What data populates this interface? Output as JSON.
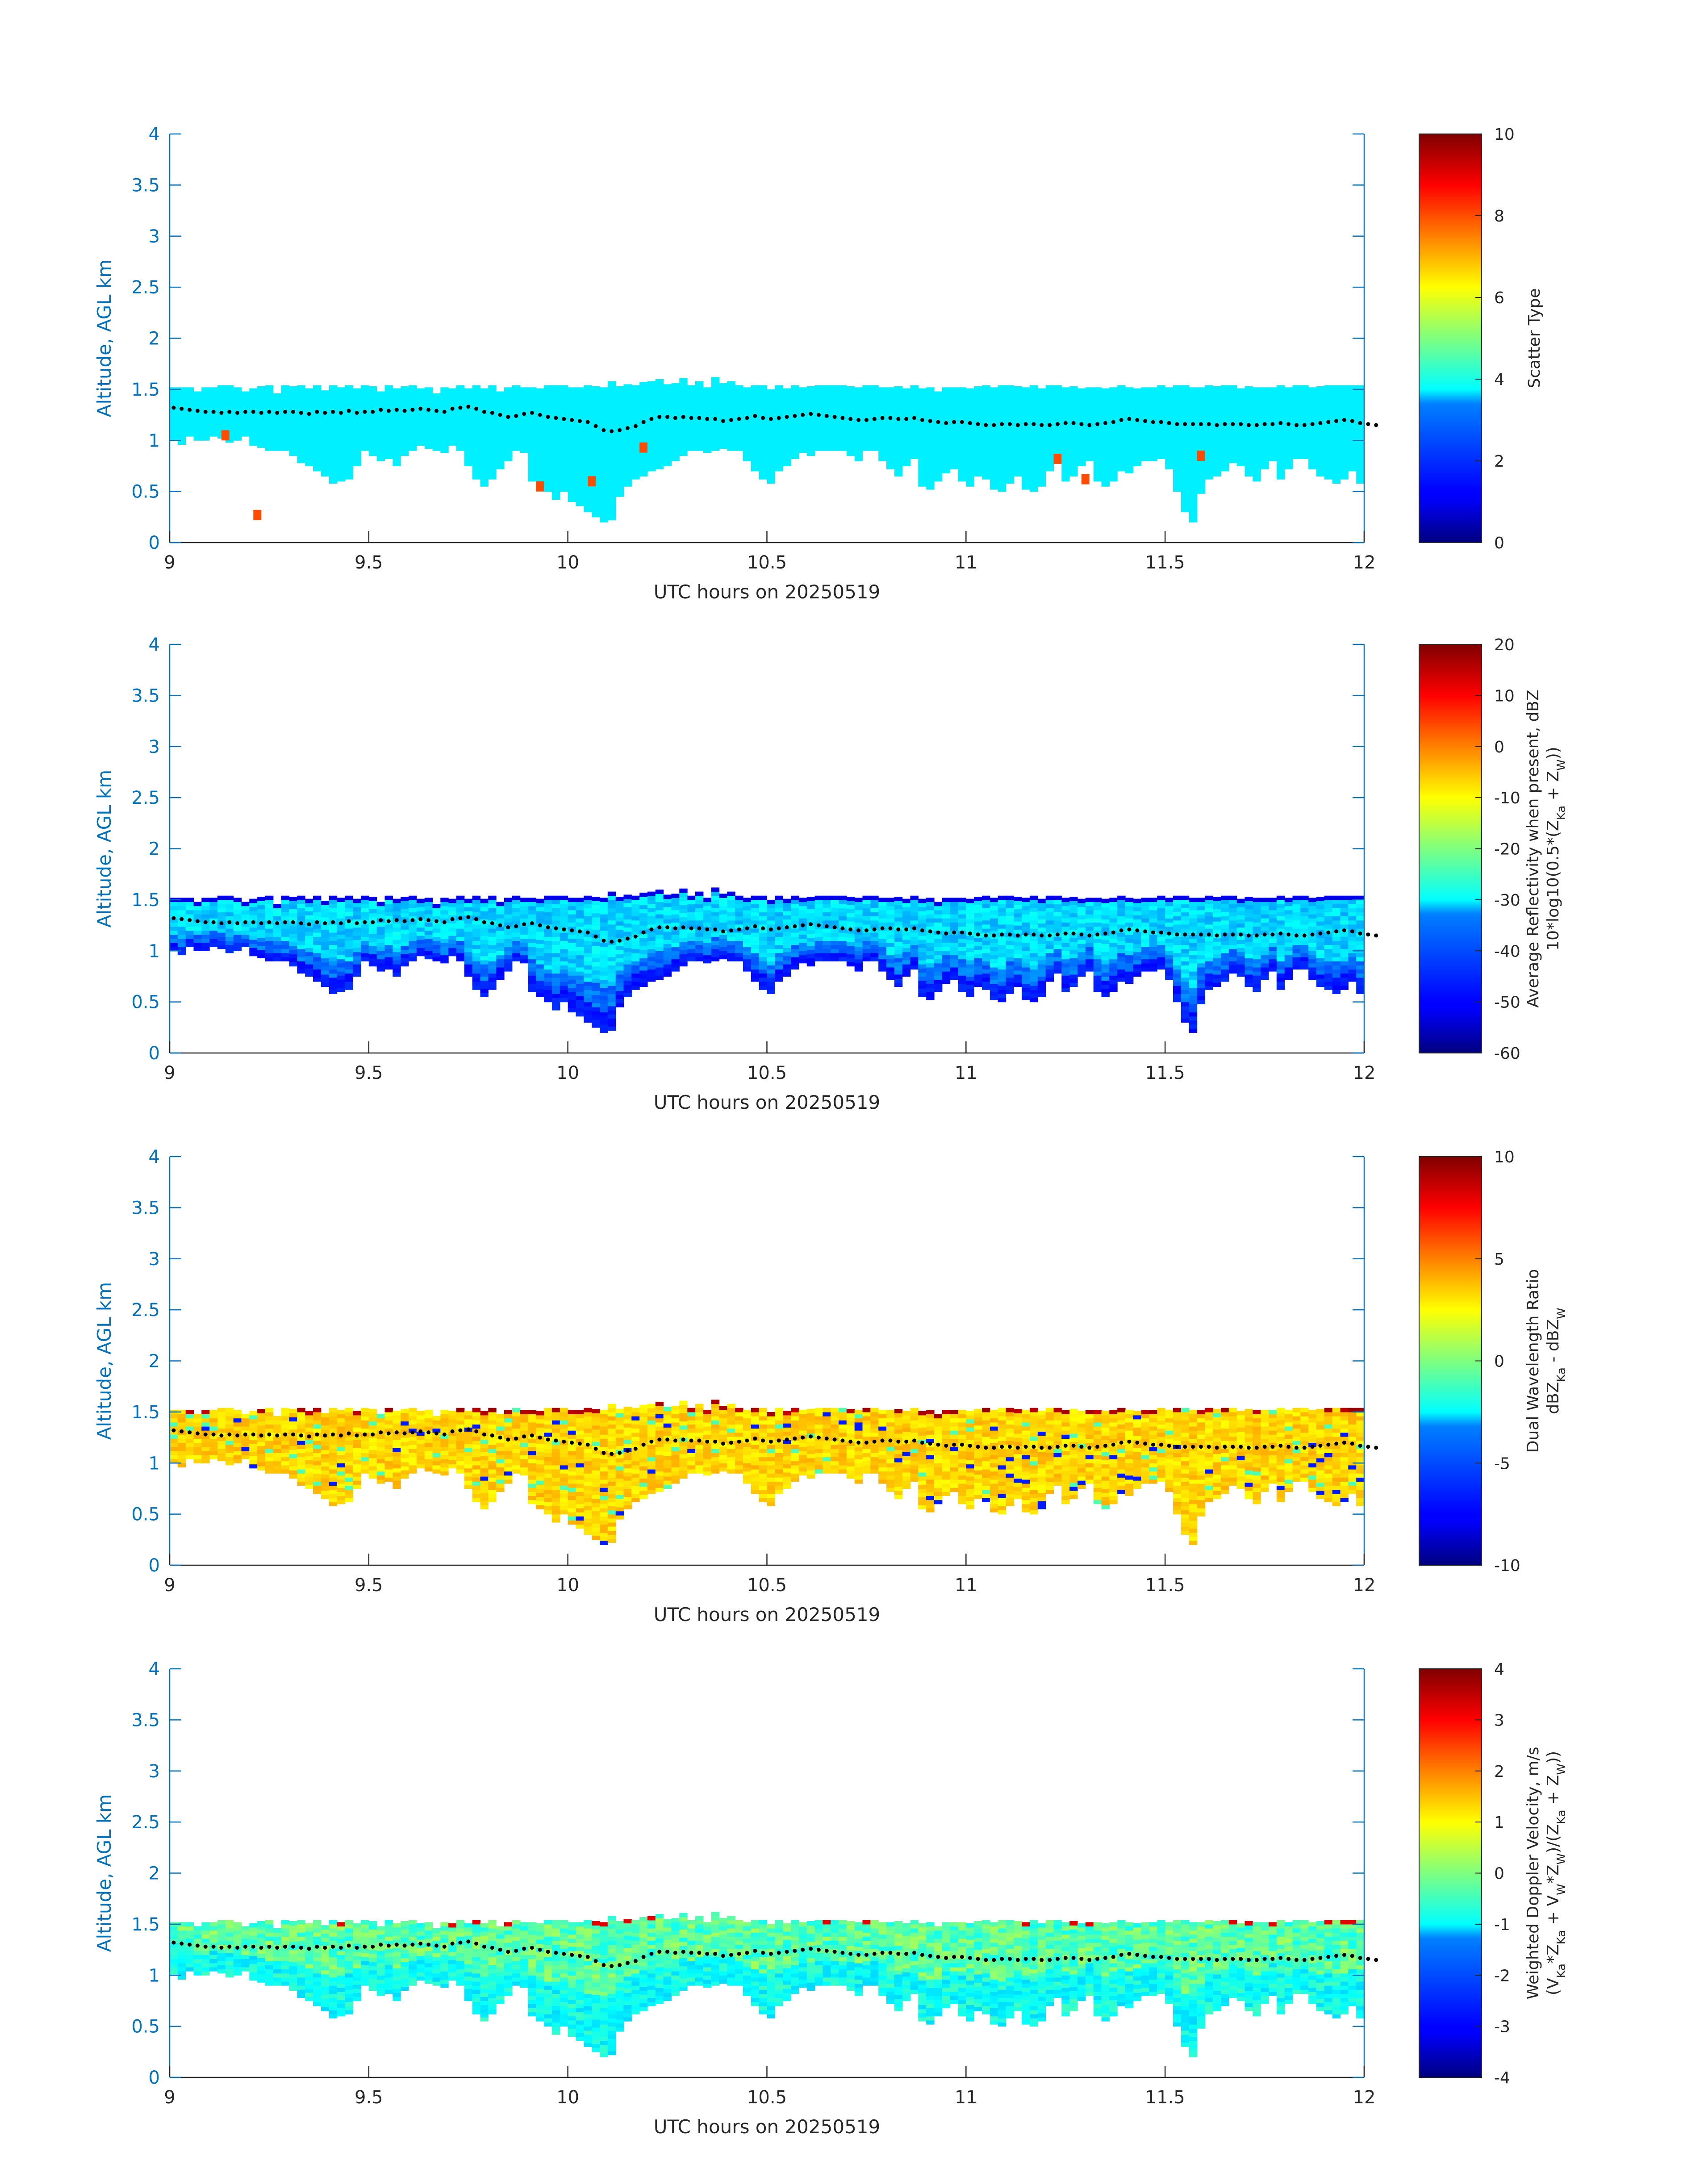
{
  "chart_data": [
    {
      "type": "heatmap",
      "variable": "scatter_type",
      "xlabel": "UTC hours on 20250519",
      "ylabel": "Altitude, AGL km",
      "xlim": [
        9,
        12
      ],
      "ylim": [
        0,
        4
      ],
      "xticks": [
        "9",
        "9.5",
        "10",
        "10.5",
        "11",
        "11.5",
        "12"
      ],
      "yticks": [
        "0",
        "0.5",
        "1",
        "1.5",
        "2",
        "2.5",
        "3",
        "3.5",
        "4"
      ],
      "colorbar": {
        "label_lines": [
          "Scatter Type"
        ],
        "range": [
          0,
          10
        ],
        "ticks": [
          "0",
          "2",
          "4",
          "6",
          "8",
          "10"
        ]
      },
      "colormap": "jet",
      "typical_value": 3.6,
      "dominant_value": 3.6,
      "isolated_values": [
        {
          "x": 9.22,
          "y": 0.27,
          "value": 8.0
        },
        {
          "x": 9.14,
          "y": 1.05,
          "value": 8.0
        },
        {
          "x": 9.93,
          "y": 0.55,
          "value": 8.0
        },
        {
          "x": 10.06,
          "y": 0.6,
          "value": 8.0
        },
        {
          "x": 10.19,
          "y": 0.93,
          "value": 8.0
        },
        {
          "x": 11.23,
          "y": 0.82,
          "value": 8.0
        },
        {
          "x": 11.3,
          "y": 0.62,
          "value": 8.0
        },
        {
          "x": 11.59,
          "y": 0.85,
          "value": 8.0
        }
      ]
    },
    {
      "type": "heatmap",
      "variable": "reflectivity",
      "xlabel": "UTC hours on 20250519",
      "ylabel": "Altitude, AGL km",
      "xlim": [
        9,
        12
      ],
      "ylim": [
        0,
        4
      ],
      "xticks": [
        "9",
        "9.5",
        "10",
        "10.5",
        "11",
        "11.5",
        "12"
      ],
      "yticks": [
        "0",
        "0.5",
        "1",
        "1.5",
        "2",
        "2.5",
        "3",
        "3.5",
        "4"
      ],
      "colorbar": {
        "label_lines": [
          "Average Reflectivity when present, dBZ",
          "10*log10(0.5*(Z_Ka + Z_W))"
        ],
        "range": [
          -60,
          20
        ],
        "ticks": [
          "-60",
          "-50",
          "-40",
          "-30",
          "-20",
          "-10",
          "0",
          "10",
          "20"
        ]
      },
      "colormap": "jet",
      "top_value": -52,
      "core_value": -33,
      "bottom_value": -50
    },
    {
      "type": "heatmap",
      "variable": "dual_wavelength_ratio",
      "xlabel": "UTC hours on 20250519",
      "ylabel": "Altitude, AGL km",
      "xlim": [
        9,
        12
      ],
      "ylim": [
        0,
        4
      ],
      "xticks": [
        "9",
        "9.5",
        "10",
        "10.5",
        "11",
        "11.5",
        "12"
      ],
      "yticks": [
        "0",
        "0.5",
        "1",
        "1.5",
        "2",
        "2.5",
        "3",
        "3.5",
        "4"
      ],
      "colorbar": {
        "label_lines": [
          "Dual Wavelength Ratio",
          "dBZ_Ka - dBZ_W"
        ],
        "range": [
          -10,
          10
        ],
        "ticks": [
          "-10",
          "-5",
          "0",
          "5",
          "10"
        ]
      },
      "colormap": "jet",
      "typical_value": 3.2,
      "top_value": 7.5
    },
    {
      "type": "heatmap",
      "variable": "weighted_doppler_velocity",
      "xlabel": "UTC hours on 20250519",
      "ylabel": "Altitude, AGL km",
      "xlim": [
        9,
        12
      ],
      "ylim": [
        0,
        4
      ],
      "xticks": [
        "9",
        "9.5",
        "10",
        "10.5",
        "11",
        "11.5",
        "12"
      ],
      "yticks": [
        "0",
        "0.5",
        "1",
        "1.5",
        "2",
        "2.5",
        "3",
        "3.5",
        "4"
      ],
      "colorbar": {
        "label_lines": [
          "Weighted Doppler Velocity, m/s",
          "(V_Ka*Z_Ka + V_W*Z_W)/(Z_Ka + Z_W))"
        ],
        "range": [
          -4,
          4
        ],
        "ticks": [
          "-4",
          "-3",
          "-2",
          "-1",
          "0",
          "1",
          "2",
          "3",
          "4"
        ]
      },
      "colormap": "jet",
      "core_value": -0.3,
      "fallstreak_value": -1.6
    }
  ],
  "cloud": {
    "time_start": 9.0,
    "time_end": 12.0,
    "time_step": 0.02,
    "top_km": [
      1.52,
      1.52,
      1.52,
      1.48,
      1.52,
      1.52,
      1.52,
      1.52,
      1.52,
      1.48,
      1.52,
      1.52,
      1.52,
      1.48,
      1.52,
      1.52,
      1.52,
      1.52,
      1.52,
      1.48,
      1.52,
      1.52,
      1.52,
      1.52,
      1.52,
      1.52,
      1.48,
      1.52,
      1.52,
      1.52,
      1.52,
      1.52,
      1.52,
      1.48,
      1.52,
      1.52,
      1.52,
      1.52,
      1.52,
      1.52,
      1.52,
      1.48,
      1.52,
      1.52,
      1.52,
      1.52,
      1.52,
      1.52,
      1.52,
      1.52,
      1.52,
      1.52,
      1.52,
      1.52,
      1.52,
      1.56,
      1.52,
      1.56,
      1.52,
      1.56,
      1.56,
      1.6,
      1.56,
      1.56,
      1.6,
      1.52,
      1.56,
      1.52,
      1.6,
      1.56,
      1.56,
      1.52,
      1.52,
      1.52,
      1.52,
      1.48,
      1.52,
      1.52,
      1.52,
      1.52,
      1.52,
      1.52,
      1.52,
      1.52,
      1.52,
      1.52,
      1.52,
      1.52,
      1.52,
      1.52,
      1.52,
      1.52,
      1.52,
      1.52,
      1.52,
      1.52,
      1.48,
      1.52,
      1.52,
      1.52,
      1.52,
      1.52,
      1.52,
      1.52,
      1.52,
      1.52,
      1.52,
      1.52,
      1.52,
      1.52,
      1.52,
      1.52,
      1.52,
      1.52,
      1.52,
      1.52,
      1.52,
      1.52,
      1.52,
      1.52,
      1.52,
      1.52,
      1.52,
      1.52,
      1.52,
      1.52,
      1.52,
      1.52,
      1.52,
      1.52,
      1.52,
      1.52,
      1.52,
      1.52,
      1.52,
      1.52,
      1.52,
      1.52,
      1.52,
      1.52,
      1.52,
      1.52,
      1.52,
      1.52,
      1.52,
      1.52,
      1.52,
      1.52,
      1.52,
      1.52,
      1.52,
      1.52,
      1.52,
      1.48,
      1.52,
      1.52,
      1.52
    ],
    "base_km": [
      1.0,
      0.96,
      1.04,
      1.0,
      1.0,
      1.04,
      1.02,
      0.98,
      1.0,
      1.04,
      0.95,
      0.93,
      0.9,
      0.9,
      0.9,
      0.85,
      0.78,
      0.75,
      0.7,
      0.65,
      0.58,
      0.6,
      0.62,
      0.75,
      0.9,
      0.85,
      0.8,
      0.82,
      0.75,
      0.85,
      0.9,
      0.95,
      0.92,
      0.9,
      0.88,
      0.95,
      0.9,
      0.75,
      0.62,
      0.55,
      0.62,
      0.72,
      0.8,
      0.9,
      0.88,
      0.6,
      0.55,
      0.5,
      0.42,
      0.5,
      0.4,
      0.36,
      0.3,
      0.25,
      0.2,
      0.22,
      0.45,
      0.55,
      0.62,
      0.65,
      0.7,
      0.72,
      0.75,
      0.8,
      0.85,
      0.9,
      0.9,
      0.88,
      0.9,
      0.92,
      0.9,
      0.9,
      0.8,
      0.7,
      0.62,
      0.58,
      0.7,
      0.75,
      0.82,
      0.88,
      0.85,
      0.9,
      0.9,
      0.9,
      0.9,
      0.85,
      0.8,
      0.9,
      0.9,
      0.8,
      0.72,
      0.65,
      0.75,
      0.82,
      0.55,
      0.52,
      0.6,
      0.68,
      0.72,
      0.6,
      0.55,
      0.65,
      0.62,
      0.52,
      0.5,
      0.58,
      0.65,
      0.52,
      0.5,
      0.55,
      0.7,
      0.78,
      0.6,
      0.65,
      0.75,
      0.8,
      0.6,
      0.55,
      0.6,
      0.7,
      0.68,
      0.75,
      0.8,
      0.8,
      0.82,
      0.72,
      0.5,
      0.3,
      0.2,
      0.48,
      0.62,
      0.65,
      0.7,
      0.78,
      0.75,
      0.65,
      0.6,
      0.72,
      0.8,
      0.62,
      0.72,
      0.82,
      0.82,
      0.72,
      0.65,
      0.62,
      0.58,
      0.62,
      0.7,
      0.58,
      0.62,
      0.75,
      0.85,
      0.88
    ],
    "melting_dots_km": [
      1.32,
      1.31,
      1.3,
      1.29,
      1.28,
      1.28,
      1.27,
      1.28,
      1.27,
      1.28,
      1.28,
      1.27,
      1.28,
      1.27,
      1.28,
      1.28,
      1.27,
      1.26,
      1.28,
      1.27,
      1.28,
      1.27,
      1.29,
      1.27,
      1.28,
      1.28,
      1.3,
      1.29,
      1.3,
      1.29,
      1.3,
      1.31,
      1.3,
      1.29,
      1.28,
      1.31,
      1.32,
      1.33,
      1.31,
      1.28,
      1.27,
      1.25,
      1.23,
      1.24,
      1.26,
      1.27,
      1.25,
      1.23,
      1.22,
      1.21,
      1.2,
      1.19,
      1.18,
      1.14,
      1.1,
      1.09,
      1.1,
      1.12,
      1.14,
      1.18,
      1.21,
      1.23,
      1.23,
      1.22,
      1.23,
      1.22,
      1.22,
      1.21,
      1.21,
      1.19,
      1.2,
      1.21,
      1.22,
      1.24,
      1.22,
      1.21,
      1.22,
      1.23,
      1.24,
      1.25,
      1.26,
      1.25,
      1.24,
      1.23,
      1.22,
      1.21,
      1.2,
      1.2,
      1.21,
      1.22,
      1.22,
      1.21,
      1.21,
      1.22,
      1.2,
      1.19,
      1.18,
      1.17,
      1.18,
      1.18,
      1.17,
      1.16,
      1.15,
      1.15,
      1.16,
      1.16,
      1.15,
      1.16,
      1.16,
      1.15,
      1.15,
      1.16,
      1.17,
      1.17,
      1.16,
      1.15,
      1.16,
      1.17,
      1.18,
      1.2,
      1.21,
      1.2,
      1.19,
      1.18,
      1.18,
      1.17,
      1.16,
      1.16,
      1.16,
      1.16,
      1.16,
      1.15,
      1.16,
      1.16,
      1.16,
      1.15,
      1.15,
      1.16,
      1.16,
      1.17,
      1.16,
      1.15,
      1.15,
      1.16,
      1.17,
      1.18,
      1.19,
      1.2,
      1.19,
      1.17,
      1.16,
      1.15
    ]
  }
}
